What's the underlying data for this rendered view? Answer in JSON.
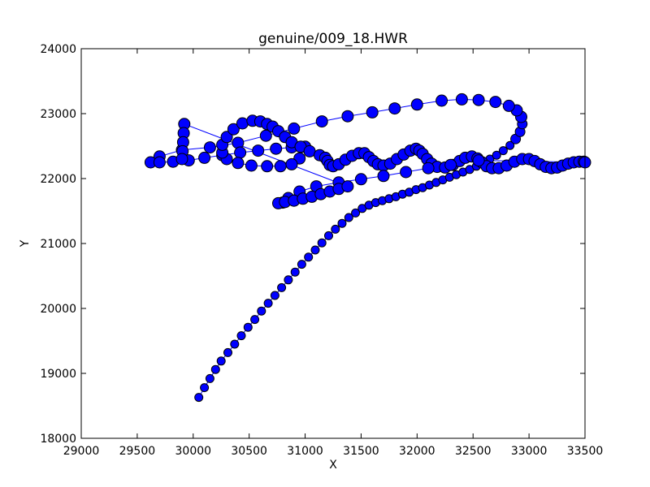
{
  "chart_data": {
    "type": "scatter",
    "title": "genuine/009_18.HWR",
    "xlabel": "X",
    "ylabel": "Y",
    "xlim": [
      29000,
      33500
    ],
    "ylim": [
      18000,
      24000
    ],
    "xticks": [
      29000,
      29500,
      30000,
      30500,
      31000,
      31500,
      32000,
      32500,
      33000,
      33500
    ],
    "yticks": [
      18000,
      19000,
      20000,
      21000,
      22000,
      23000,
      24000
    ],
    "grid": false,
    "legend": "none",
    "colors": {
      "marker_fill": "#0000ff",
      "marker_edge": "#000000",
      "line": "#0000ff"
    },
    "series": [
      {
        "line": true,
        "points": [
          [
            30050,
            18630
          ],
          [
            30100,
            18780
          ],
          [
            30150,
            18920
          ],
          [
            30200,
            19060
          ],
          [
            30250,
            19190
          ],
          [
            30310,
            19320
          ],
          [
            30370,
            19450
          ],
          [
            30430,
            19580
          ],
          [
            30490,
            19710
          ],
          [
            30550,
            19830
          ],
          [
            30610,
            19960
          ],
          [
            30670,
            20080
          ],
          [
            30730,
            20200
          ],
          [
            30790,
            20320
          ],
          [
            30850,
            20440
          ],
          [
            30910,
            20560
          ],
          [
            30970,
            20680
          ],
          [
            31030,
            20790
          ],
          [
            31090,
            20900
          ],
          [
            31150,
            21010
          ],
          [
            31210,
            21120
          ],
          [
            31270,
            21220
          ],
          [
            31330,
            21310
          ],
          [
            31390,
            21400
          ],
          [
            31450,
            21470
          ],
          [
            31510,
            21540
          ],
          [
            31570,
            21590
          ],
          [
            31630,
            21630
          ],
          [
            31690,
            21660
          ],
          [
            31750,
            21690
          ],
          [
            31810,
            21720
          ],
          [
            31870,
            21760
          ],
          [
            31930,
            21790
          ],
          [
            31990,
            21830
          ],
          [
            32050,
            21860
          ],
          [
            32110,
            21900
          ],
          [
            32170,
            21940
          ],
          [
            32230,
            21980
          ],
          [
            32290,
            22020
          ],
          [
            32350,
            22060
          ],
          [
            32410,
            22100
          ],
          [
            32470,
            22140
          ],
          [
            32530,
            22190
          ],
          [
            32590,
            22240
          ],
          [
            32650,
            22300
          ],
          [
            32710,
            22360
          ],
          [
            32770,
            22430
          ],
          [
            32830,
            22510
          ],
          [
            32880,
            22610
          ],
          [
            32920,
            22720
          ],
          [
            32940,
            22840
          ],
          [
            32930,
            22950
          ],
          [
            32890,
            23050
          ],
          [
            32820,
            23120
          ],
          [
            32700,
            23180
          ],
          [
            32550,
            23210
          ],
          [
            32400,
            23220
          ],
          [
            32220,
            23200
          ],
          [
            32000,
            23140
          ],
          [
            31800,
            23080
          ],
          [
            31600,
            23020
          ],
          [
            31380,
            22960
          ],
          [
            31150,
            22880
          ],
          [
            30900,
            22770
          ],
          [
            30650,
            22660
          ],
          [
            30400,
            22550
          ],
          [
            30150,
            22480
          ],
          [
            29900,
            22440
          ],
          [
            29700,
            22340
          ],
          [
            29620,
            22250
          ],
          [
            29700,
            22250
          ],
          [
            29820,
            22260
          ],
          [
            29960,
            22280
          ],
          [
            30100,
            22320
          ],
          [
            30260,
            22360
          ],
          [
            30420,
            22400
          ],
          [
            30580,
            22430
          ],
          [
            30740,
            22460
          ],
          [
            30880,
            22480
          ],
          [
            31000,
            22490
          ],
          [
            30950,
            22310
          ],
          [
            30880,
            22220
          ],
          [
            30780,
            22190
          ],
          [
            30660,
            22190
          ],
          [
            30520,
            22200
          ],
          [
            30400,
            22240
          ],
          [
            30300,
            22300
          ],
          [
            30260,
            22400
          ],
          [
            30260,
            22520
          ],
          [
            30300,
            22640
          ],
          [
            30360,
            22760
          ],
          [
            30440,
            22850
          ],
          [
            30530,
            22890
          ],
          [
            30600,
            22880
          ],
          [
            30660,
            22840
          ],
          [
            30710,
            22800
          ],
          [
            30760,
            22730
          ],
          [
            30820,
            22640
          ],
          [
            30880,
            22560
          ],
          [
            30960,
            22490
          ],
          [
            31040,
            22420
          ],
          [
            31130,
            22360
          ],
          [
            31180,
            22320
          ],
          [
            31200,
            22270
          ],
          [
            31220,
            22210
          ],
          [
            31250,
            22190
          ],
          [
            31300,
            22220
          ],
          [
            31360,
            22290
          ],
          [
            31420,
            22350
          ],
          [
            31480,
            22390
          ],
          [
            31530,
            22390
          ],
          [
            31570,
            22330
          ],
          [
            31610,
            22270
          ],
          [
            31650,
            22220
          ],
          [
            31700,
            22200
          ],
          [
            31760,
            22230
          ],
          [
            31820,
            22300
          ],
          [
            31880,
            22370
          ],
          [
            31940,
            22430
          ],
          [
            31990,
            22460
          ],
          [
            32020,
            22430
          ],
          [
            32050,
            22380
          ],
          [
            32090,
            22300
          ],
          [
            32130,
            22230
          ],
          [
            32180,
            22180
          ],
          [
            32250,
            22170
          ],
          [
            32320,
            22210
          ],
          [
            32380,
            22270
          ],
          [
            32430,
            22320
          ],
          [
            32490,
            22340
          ],
          [
            32540,
            22310
          ],
          [
            32580,
            22250
          ],
          [
            32620,
            22190
          ],
          [
            32670,
            22160
          ],
          [
            32730,
            22160
          ],
          [
            32800,
            22200
          ],
          [
            32870,
            22260
          ],
          [
            32940,
            22300
          ],
          [
            33000,
            22300
          ],
          [
            33050,
            22270
          ],
          [
            33100,
            22220
          ],
          [
            33150,
            22180
          ],
          [
            33200,
            22160
          ],
          [
            33250,
            22170
          ],
          [
            33300,
            22200
          ],
          [
            33350,
            22230
          ],
          [
            33400,
            22250
          ],
          [
            33450,
            22260
          ],
          [
            33490,
            22260
          ],
          [
            33500,
            22250
          ],
          [
            32550,
            22280
          ],
          [
            32300,
            22210
          ],
          [
            32100,
            22160
          ],
          [
            31900,
            22100
          ],
          [
            31700,
            22040
          ],
          [
            31500,
            21990
          ],
          [
            31300,
            21940
          ],
          [
            31100,
            21880
          ],
          [
            30950,
            21800
          ],
          [
            30850,
            21700
          ],
          [
            30800,
            21630
          ],
          [
            30760,
            21620
          ],
          [
            30820,
            21640
          ],
          [
            30900,
            21660
          ],
          [
            30980,
            21690
          ],
          [
            31060,
            21720
          ],
          [
            31140,
            21760
          ],
          [
            31220,
            21800
          ],
          [
            31300,
            21840
          ],
          [
            31380,
            21880
          ],
          [
            29920,
            22840
          ],
          [
            29915,
            22700
          ],
          [
            29910,
            22560
          ],
          [
            29905,
            22420
          ],
          [
            29900,
            22300
          ]
        ],
        "sizes": [
          5,
          5,
          5,
          5,
          5,
          5,
          5,
          5,
          5,
          5,
          5,
          5,
          5,
          5,
          5,
          5,
          5,
          5,
          5,
          5,
          5,
          5,
          5,
          5,
          5,
          5,
          5,
          5,
          5,
          5,
          5,
          5,
          5,
          5,
          5,
          5,
          5,
          5,
          5,
          5,
          5,
          5,
          5,
          5,
          5,
          5,
          5,
          5,
          6,
          6,
          6,
          7,
          7,
          7,
          7,
          7,
          7,
          7,
          7,
          7,
          7,
          7,
          7,
          7,
          7,
          7,
          7,
          7,
          7,
          7,
          7,
          7,
          7,
          7,
          7,
          7,
          7,
          7,
          7,
          7,
          7,
          7,
          7,
          7,
          7,
          7,
          7,
          7,
          7,
          7,
          7,
          7,
          7,
          7,
          7,
          7,
          7,
          7,
          7,
          7,
          7,
          7,
          7,
          7,
          7,
          7,
          7,
          7,
          7,
          7,
          7,
          7,
          7,
          7,
          7,
          7,
          7,
          7,
          7,
          7,
          7,
          7,
          7,
          7,
          7,
          7,
          7,
          7,
          7,
          7,
          7,
          7,
          7,
          7,
          7,
          7,
          7,
          7,
          7,
          7,
          7,
          7,
          7,
          7,
          7,
          7,
          7,
          7,
          7,
          7,
          7,
          7,
          7,
          7,
          7,
          7,
          7,
          7,
          7,
          7,
          7,
          7,
          7,
          7,
          7,
          7,
          7,
          7,
          7,
          7,
          7,
          7,
          7,
          7,
          7
        ]
      }
    ]
  }
}
